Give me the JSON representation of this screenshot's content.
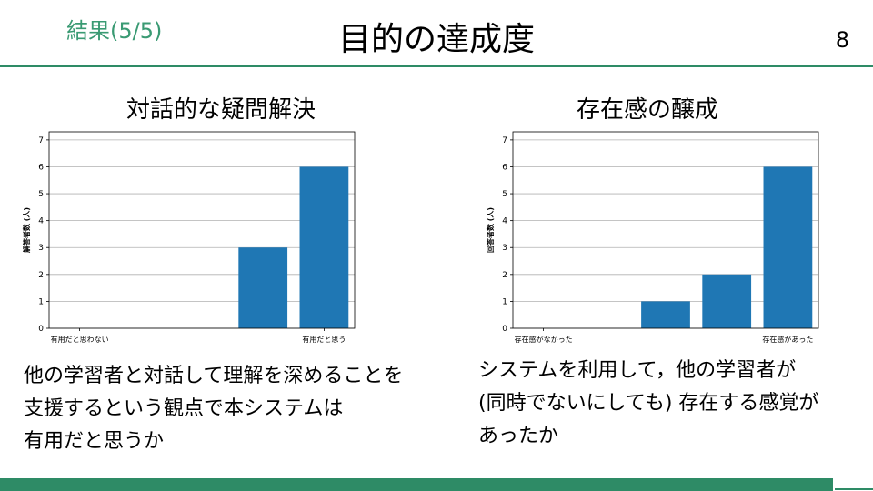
{
  "header": {
    "section_label": "結果(5/5)",
    "title": "目的の達成度",
    "page_number": "8"
  },
  "colors": {
    "accent": "#2e8b66",
    "section_label": "#3a9a73",
    "bar": "#1f77b4"
  },
  "charts": [
    {
      "title": "対話的な疑問解決",
      "description": [
        "他の学習者と対話して理解を深めることを",
        "支援するという観点で本システムは",
        "有用だと思うか"
      ]
    },
    {
      "title": "存在感の醸成",
      "description": [
        "システムを利用して，他の学習者が",
        "(同時でないにしても) 存在する感覚が",
        "あったか"
      ]
    }
  ],
  "chart_data": [
    {
      "type": "bar",
      "title": "",
      "xlabel": "",
      "ylabel": "解答者数 (人)",
      "ylim": [
        0,
        7.3
      ],
      "yticks": [
        0,
        1,
        2,
        3,
        4,
        5,
        6,
        7
      ],
      "grid": true,
      "categories": [
        "1",
        "2",
        "3",
        "4",
        "5"
      ],
      "x_tick_labels": [
        "有用だと思わない",
        "",
        "",
        "",
        "有用だと思う"
      ],
      "values": [
        0,
        0,
        0,
        3,
        6
      ]
    },
    {
      "type": "bar",
      "title": "",
      "xlabel": "",
      "ylabel": "回答者数 (人)",
      "ylim": [
        0,
        7.3
      ],
      "yticks": [
        0,
        1,
        2,
        3,
        4,
        5,
        6,
        7
      ],
      "grid": true,
      "categories": [
        "1",
        "2",
        "3",
        "4",
        "5"
      ],
      "x_tick_labels": [
        "存在感がなかった",
        "",
        "",
        "",
        "存在感があった"
      ],
      "values": [
        0,
        0,
        1,
        2,
        6
      ]
    }
  ]
}
